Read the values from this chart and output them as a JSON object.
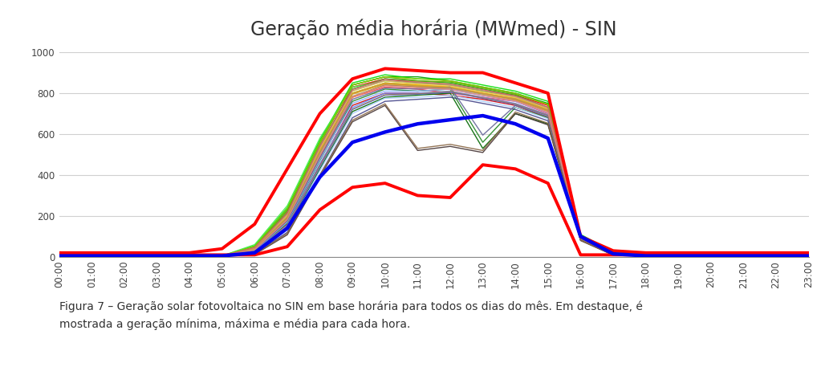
{
  "title": "Geração média horária (MWmed) - SIN",
  "caption": "Figura 7 – Geração solar fotovoltaica no SIN em base horária para todos os dias do mês. Em destaque, é\nmostrada a geração mínima, máxima e média para cada hora.",
  "ylim": [
    0,
    1040
  ],
  "yticks": [
    0,
    200,
    400,
    600,
    800,
    1000
  ],
  "hours": [
    0,
    1,
    2,
    3,
    4,
    5,
    6,
    7,
    8,
    9,
    10,
    11,
    12,
    13,
    14,
    15,
    16,
    17,
    18,
    19,
    20,
    21,
    22,
    23
  ],
  "background_color": "#ffffff",
  "grid_color": "#d0d0d0",
  "title_fontsize": 17,
  "caption_fontsize": 10,
  "max_line": [
    20,
    20,
    20,
    20,
    20,
    40,
    160,
    430,
    700,
    870,
    920,
    910,
    900,
    900,
    850,
    800,
    100,
    30,
    20,
    20,
    20,
    20,
    20,
    20
  ],
  "min_line": [
    10,
    10,
    10,
    10,
    10,
    10,
    10,
    50,
    230,
    340,
    360,
    300,
    290,
    450,
    430,
    360,
    10,
    10,
    10,
    10,
    10,
    10,
    10,
    10
  ],
  "mean_line": [
    5,
    5,
    5,
    5,
    5,
    5,
    20,
    140,
    390,
    560,
    610,
    650,
    670,
    690,
    650,
    580,
    100,
    15,
    5,
    5,
    5,
    5,
    5,
    5
  ],
  "daily_lines": [
    {
      "color": "#ff0000",
      "lw": 1.0,
      "data": [
        5,
        5,
        5,
        5,
        5,
        5,
        40,
        220,
        530,
        830,
        870,
        850,
        840,
        810,
        790,
        740,
        100,
        20,
        5,
        5,
        5,
        5,
        5,
        5
      ]
    },
    {
      "color": "#ff4444",
      "lw": 1.0,
      "data": [
        5,
        5,
        5,
        5,
        5,
        5,
        30,
        180,
        480,
        780,
        830,
        820,
        800,
        780,
        760,
        700,
        100,
        15,
        5,
        5,
        5,
        5,
        5,
        5
      ]
    },
    {
      "color": "#cc0000",
      "lw": 1.0,
      "data": [
        5,
        5,
        5,
        5,
        5,
        5,
        25,
        160,
        450,
        740,
        800,
        800,
        790,
        770,
        740,
        680,
        90,
        12,
        5,
        5,
        5,
        5,
        5,
        5
      ]
    },
    {
      "color": "#009900",
      "lw": 1.0,
      "data": [
        5,
        5,
        5,
        5,
        5,
        5,
        50,
        230,
        560,
        840,
        880,
        880,
        860,
        830,
        800,
        750,
        105,
        22,
        5,
        5,
        5,
        5,
        5,
        5
      ]
    },
    {
      "color": "#00bb00",
      "lw": 1.0,
      "data": [
        5,
        5,
        5,
        5,
        5,
        5,
        45,
        210,
        540,
        820,
        870,
        860,
        850,
        820,
        790,
        730,
        100,
        20,
        5,
        5,
        5,
        5,
        5,
        5
      ]
    },
    {
      "color": "#00dd00",
      "lw": 1.0,
      "data": [
        5,
        5,
        5,
        5,
        5,
        5,
        55,
        240,
        570,
        850,
        890,
        870,
        870,
        840,
        810,
        760,
        110,
        25,
        5,
        5,
        5,
        5,
        5,
        5
      ]
    },
    {
      "color": "#22cc22",
      "lw": 1.0,
      "data": [
        5,
        5,
        5,
        5,
        5,
        5,
        35,
        190,
        510,
        800,
        850,
        840,
        830,
        800,
        770,
        720,
        95,
        18,
        5,
        5,
        5,
        5,
        5,
        5
      ]
    },
    {
      "color": "#44ee44",
      "lw": 1.0,
      "data": [
        5,
        5,
        5,
        5,
        5,
        5,
        60,
        250,
        580,
        830,
        860,
        850,
        840,
        810,
        780,
        720,
        108,
        24,
        5,
        5,
        5,
        5,
        5,
        5
      ]
    },
    {
      "color": "#006600",
      "lw": 1.0,
      "data": [
        5,
        5,
        5,
        5,
        5,
        5,
        20,
        140,
        430,
        710,
        780,
        790,
        800,
        530,
        700,
        650,
        85,
        10,
        5,
        5,
        5,
        5,
        5,
        5
      ]
    },
    {
      "color": "#228822",
      "lw": 1.0,
      "data": [
        5,
        5,
        5,
        5,
        5,
        5,
        28,
        165,
        470,
        760,
        820,
        810,
        820,
        560,
        730,
        680,
        90,
        14,
        5,
        5,
        5,
        5,
        5,
        5
      ]
    },
    {
      "color": "#66aa00",
      "lw": 1.0,
      "data": [
        5,
        5,
        5,
        5,
        5,
        5,
        48,
        220,
        550,
        840,
        880,
        860,
        855,
        825,
        795,
        745,
        102,
        22,
        5,
        5,
        5,
        5,
        5,
        5
      ]
    },
    {
      "color": "#88cc00",
      "lw": 1.0,
      "data": [
        5,
        5,
        5,
        5,
        5,
        5,
        52,
        235,
        560,
        840,
        880,
        870,
        860,
        830,
        800,
        745,
        104,
        23,
        5,
        5,
        5,
        5,
        5,
        5
      ]
    },
    {
      "color": "#ffaa00",
      "lw": 1.0,
      "data": [
        5,
        5,
        5,
        5,
        5,
        5,
        38,
        195,
        520,
        800,
        850,
        840,
        830,
        800,
        775,
        720,
        98,
        19,
        5,
        5,
        5,
        5,
        5,
        5
      ]
    },
    {
      "color": "#ff8800",
      "lw": 1.0,
      "data": [
        5,
        5,
        5,
        5,
        5,
        5,
        33,
        178,
        495,
        780,
        840,
        830,
        820,
        790,
        765,
        710,
        94,
        17,
        5,
        5,
        5,
        5,
        5,
        5
      ]
    },
    {
      "color": "#ffcc44",
      "lw": 1.0,
      "data": [
        5,
        5,
        5,
        5,
        5,
        5,
        42,
        205,
        530,
        810,
        860,
        845,
        835,
        805,
        780,
        725,
        100,
        21,
        5,
        5,
        5,
        5,
        5,
        5
      ]
    },
    {
      "color": "#ddaa00",
      "lw": 1.0,
      "data": [
        5,
        5,
        5,
        5,
        5,
        5,
        37,
        192,
        515,
        795,
        845,
        835,
        825,
        795,
        770,
        715,
        97,
        19,
        5,
        5,
        5,
        5,
        5,
        5
      ]
    },
    {
      "color": "#4466ff",
      "lw": 1.0,
      "data": [
        5,
        5,
        5,
        5,
        5,
        5,
        22,
        145,
        440,
        720,
        790,
        795,
        805,
        775,
        745,
        690,
        88,
        13,
        5,
        5,
        5,
        5,
        5,
        5
      ]
    },
    {
      "color": "#6688ff",
      "lw": 1.0,
      "data": [
        5,
        5,
        5,
        5,
        5,
        5,
        26,
        155,
        455,
        730,
        800,
        800,
        810,
        780,
        750,
        695,
        90,
        14,
        5,
        5,
        5,
        5,
        5,
        5
      ]
    },
    {
      "color": "#88aaff",
      "lw": 1.0,
      "data": [
        5,
        5,
        5,
        5,
        5,
        5,
        30,
        170,
        475,
        750,
        810,
        810,
        820,
        790,
        760,
        705,
        92,
        16,
        5,
        5,
        5,
        5,
        5,
        5
      ]
    },
    {
      "color": "#aaccff",
      "lw": 1.0,
      "data": [
        5,
        5,
        5,
        5,
        5,
        5,
        18,
        132,
        420,
        700,
        775,
        780,
        790,
        760,
        730,
        675,
        85,
        11,
        5,
        5,
        5,
        5,
        5,
        5
      ]
    },
    {
      "color": "#444488",
      "lw": 1.0,
      "data": [
        5,
        5,
        5,
        5,
        5,
        5,
        15,
        120,
        400,
        680,
        760,
        770,
        780,
        750,
        720,
        665,
        82,
        10,
        5,
        5,
        5,
        5,
        5,
        5
      ]
    },
    {
      "color": "#666699",
      "lw": 1.0,
      "data": [
        5,
        5,
        5,
        5,
        5,
        5,
        32,
        175,
        485,
        770,
        825,
        820,
        830,
        595,
        740,
        685,
        90,
        15,
        5,
        5,
        5,
        5,
        5,
        5
      ]
    },
    {
      "color": "#443333",
      "lw": 1.0,
      "data": [
        5,
        5,
        5,
        5,
        5,
        5,
        12,
        108,
        390,
        660,
        740,
        520,
        540,
        510,
        700,
        645,
        80,
        9,
        5,
        5,
        5,
        5,
        5,
        5
      ]
    },
    {
      "color": "#886644",
      "lw": 1.0,
      "data": [
        5,
        5,
        5,
        5,
        5,
        5,
        14,
        114,
        398,
        668,
        748,
        530,
        550,
        520,
        708,
        653,
        82,
        9,
        5,
        5,
        5,
        5,
        5,
        5
      ]
    },
    {
      "color": "#aa8866",
      "lw": 1.0,
      "data": [
        5,
        5,
        5,
        5,
        5,
        5,
        36,
        188,
        505,
        785,
        840,
        830,
        825,
        798,
        770,
        715,
        96,
        18,
        5,
        5,
        5,
        5,
        5,
        5
      ]
    },
    {
      "color": "#cc9944",
      "lw": 1.0,
      "data": [
        5,
        5,
        5,
        5,
        5,
        5,
        40,
        198,
        518,
        798,
        848,
        835,
        828,
        798,
        773,
        718,
        98,
        20,
        5,
        5,
        5,
        5,
        5,
        5
      ]
    },
    {
      "color": "#997755",
      "lw": 1.0,
      "data": [
        5,
        5,
        5,
        5,
        5,
        5,
        24,
        150,
        445,
        722,
        792,
        797,
        808,
        777,
        747,
        692,
        88,
        12,
        5,
        5,
        5,
        5,
        5,
        5
      ]
    },
    {
      "color": "#bb9977",
      "lw": 1.0,
      "data": [
        5,
        5,
        5,
        5,
        5,
        5,
        44,
        208,
        535,
        812,
        862,
        850,
        840,
        812,
        783,
        728,
        99,
        21,
        5,
        5,
        5,
        5,
        5,
        5
      ]
    },
    {
      "color": "#cc6666",
      "lw": 1.0,
      "data": [
        5,
        5,
        5,
        5,
        5,
        5,
        46,
        214,
        542,
        818,
        868,
        855,
        845,
        817,
        787,
        732,
        100,
        21,
        5,
        5,
        5,
        5,
        5,
        5
      ]
    },
    {
      "color": "#dd8888",
      "lw": 1.0,
      "data": [
        5,
        5,
        5,
        5,
        5,
        5,
        34,
        183,
        498,
        782,
        836,
        826,
        818,
        788,
        762,
        707,
        93,
        17,
        5,
        5,
        5,
        5,
        5,
        5
      ]
    }
  ]
}
